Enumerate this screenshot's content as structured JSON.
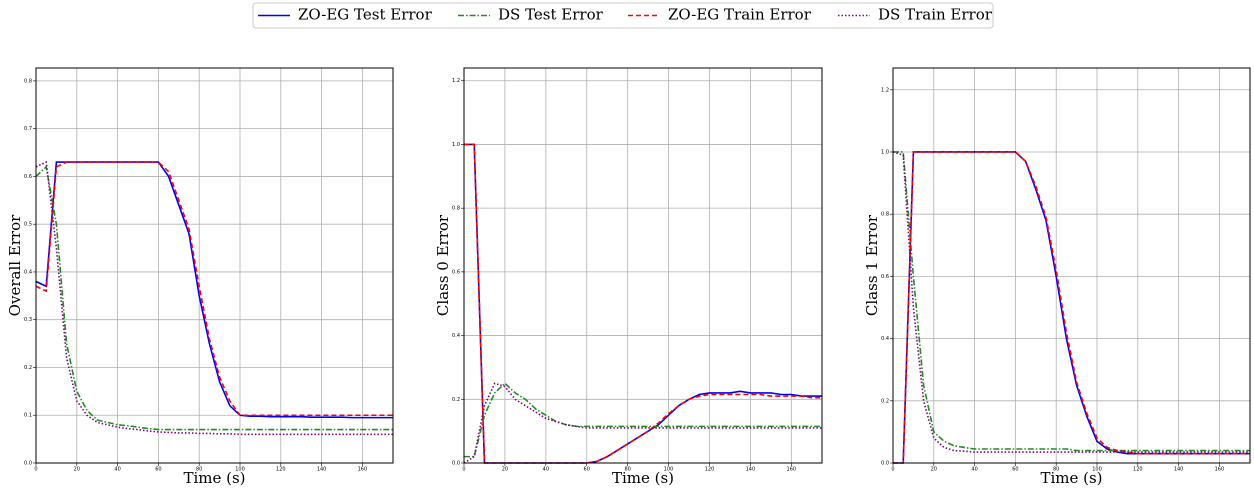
{
  "chart_data": [
    {
      "type": "line",
      "xlabel": "Time (s)",
      "ylabel": "Overall Error",
      "x": [
        0,
        5,
        10,
        15,
        20,
        25,
        30,
        35,
        40,
        45,
        50,
        55,
        60,
        65,
        70,
        75,
        80,
        85,
        90,
        95,
        100,
        105,
        110,
        115,
        120,
        125,
        130,
        135,
        140,
        145,
        150,
        155,
        160,
        165,
        170,
        175
      ],
      "xlim": [
        0,
        175
      ],
      "xticks": [
        0,
        20,
        40,
        60,
        80,
        100,
        120,
        140,
        160
      ],
      "ylim": [
        0,
        0.827
      ],
      "yticks": [
        {
          "value": 0,
          "label": "0.0"
        },
        0.1,
        0.2,
        0.3,
        0.4,
        0.5,
        0.6,
        0.7,
        0.8
      ],
      "grid": true,
      "series": [
        {
          "name": "ZO-EG Test Error",
          "color": "#0000ff",
          "linestyle": "solid",
          "values": [
            0.38,
            0.37,
            0.63,
            0.63,
            0.63,
            0.63,
            0.63,
            0.63,
            0.63,
            0.63,
            0.63,
            0.63,
            0.63,
            0.6,
            0.54,
            0.48,
            0.35,
            0.25,
            0.17,
            0.12,
            0.1,
            0.098,
            0.098,
            0.097,
            0.097,
            0.097,
            0.097,
            0.096,
            0.096,
            0.096,
            0.096,
            0.095,
            0.095,
            0.095,
            0.095,
            0.095
          ]
        },
        {
          "name": "DS Test Error",
          "color": "#228b22",
          "linestyle": "dashdot",
          "values": [
            0.6,
            0.62,
            0.5,
            0.25,
            0.15,
            0.11,
            0.09,
            0.085,
            0.08,
            0.078,
            0.075,
            0.072,
            0.07,
            0.07,
            0.07,
            0.07,
            0.07,
            0.07,
            0.07,
            0.07,
            0.07,
            0.07,
            0.07,
            0.07,
            0.07,
            0.07,
            0.07,
            0.07,
            0.07,
            0.07,
            0.07,
            0.07,
            0.07,
            0.07,
            0.07,
            0.07
          ]
        },
        {
          "name": "ZO-EG Train Error",
          "color": "#ff0000",
          "linestyle": "dashed",
          "values": [
            0.37,
            0.36,
            0.62,
            0.63,
            0.63,
            0.63,
            0.63,
            0.63,
            0.63,
            0.63,
            0.63,
            0.63,
            0.63,
            0.61,
            0.55,
            0.49,
            0.37,
            0.26,
            0.18,
            0.13,
            0.1,
            0.1,
            0.1,
            0.1,
            0.1,
            0.1,
            0.1,
            0.1,
            0.1,
            0.1,
            0.1,
            0.1,
            0.1,
            0.1,
            0.1,
            0.1
          ]
        },
        {
          "name": "DS Train Error",
          "color": "#800080",
          "linestyle": "dotted",
          "values": [
            0.62,
            0.63,
            0.45,
            0.22,
            0.13,
            0.1,
            0.085,
            0.08,
            0.075,
            0.072,
            0.07,
            0.067,
            0.065,
            0.064,
            0.063,
            0.063,
            0.062,
            0.062,
            0.061,
            0.061,
            0.06,
            0.06,
            0.06,
            0.06,
            0.06,
            0.06,
            0.06,
            0.06,
            0.06,
            0.06,
            0.06,
            0.06,
            0.06,
            0.06,
            0.06,
            0.06
          ]
        }
      ]
    },
    {
      "type": "line",
      "xlabel": "Time (s)",
      "ylabel": "Class 0 Error",
      "x": [
        0,
        5,
        10,
        15,
        20,
        25,
        30,
        35,
        40,
        45,
        50,
        55,
        60,
        65,
        70,
        75,
        80,
        85,
        90,
        95,
        100,
        105,
        110,
        115,
        120,
        125,
        130,
        135,
        140,
        145,
        150,
        155,
        160,
        165,
        170,
        175
      ],
      "xlim": [
        0,
        175
      ],
      "xticks": [
        0,
        20,
        40,
        60,
        80,
        100,
        120,
        140,
        160
      ],
      "ylim": [
        0,
        1.24
      ],
      "yticks": [
        {
          "value": 0,
          "label": "0.0"
        },
        0.2,
        0.4,
        0.6,
        0.8,
        {
          "value": 1,
          "label": "1.0"
        },
        1.2
      ],
      "grid": true,
      "series": [
        {
          "name": "ZO-EG Test Error",
          "color": "#0000ff",
          "linestyle": "solid",
          "values": [
            1,
            1,
            0,
            0,
            0,
            0,
            0,
            0,
            0,
            0,
            0,
            0,
            0,
            0.005,
            0.02,
            0.04,
            0.06,
            0.08,
            0.1,
            0.12,
            0.15,
            0.18,
            0.2,
            0.215,
            0.22,
            0.22,
            0.22,
            0.225,
            0.22,
            0.22,
            0.22,
            0.215,
            0.215,
            0.21,
            0.21,
            0.21
          ]
        },
        {
          "name": "DS Test Error",
          "color": "#228b22",
          "linestyle": "dashdot",
          "values": [
            0.02,
            0.02,
            0.15,
            0.22,
            0.25,
            0.22,
            0.2,
            0.17,
            0.15,
            0.13,
            0.12,
            0.115,
            0.115,
            0.115,
            0.115,
            0.115,
            0.115,
            0.115,
            0.115,
            0.115,
            0.115,
            0.115,
            0.115,
            0.115,
            0.115,
            0.115,
            0.115,
            0.115,
            0.115,
            0.115,
            0.115,
            0.115,
            0.115,
            0.115,
            0.115,
            0.115
          ]
        },
        {
          "name": "ZO-EG Train Error",
          "color": "#ff0000",
          "linestyle": "dashed",
          "values": [
            1,
            1,
            0,
            0,
            0,
            0,
            0,
            0,
            0,
            0,
            0,
            0,
            0,
            0.005,
            0.02,
            0.04,
            0.06,
            0.08,
            0.1,
            0.125,
            0.155,
            0.18,
            0.2,
            0.21,
            0.215,
            0.215,
            0.215,
            0.215,
            0.215,
            0.215,
            0.21,
            0.21,
            0.21,
            0.21,
            0.205,
            0.205
          ]
        },
        {
          "name": "DS Train Error",
          "color": "#800080",
          "linestyle": "dotted",
          "values": [
            0,
            0.02,
            0.18,
            0.25,
            0.24,
            0.2,
            0.18,
            0.16,
            0.14,
            0.13,
            0.12,
            0.115,
            0.11,
            0.11,
            0.11,
            0.11,
            0.11,
            0.11,
            0.11,
            0.11,
            0.11,
            0.11,
            0.11,
            0.11,
            0.11,
            0.11,
            0.11,
            0.11,
            0.11,
            0.11,
            0.11,
            0.11,
            0.11,
            0.11,
            0.11,
            0.11
          ]
        }
      ]
    },
    {
      "type": "line",
      "xlabel": "Time (s)",
      "ylabel": "Class 1 Error",
      "x": [
        0,
        5,
        10,
        15,
        20,
        25,
        30,
        35,
        40,
        45,
        50,
        55,
        60,
        65,
        70,
        75,
        80,
        85,
        90,
        95,
        100,
        105,
        110,
        115,
        120,
        125,
        130,
        135,
        140,
        145,
        150,
        155,
        160,
        165,
        170,
        175
      ],
      "xlim": [
        0,
        175
      ],
      "xticks": [
        0,
        20,
        40,
        60,
        80,
        100,
        120,
        140,
        160
      ],
      "ylim": [
        0,
        1.27
      ],
      "yticks": [
        {
          "value": 0,
          "label": "0.0"
        },
        0.2,
        0.4,
        0.6,
        0.8,
        {
          "value": 1,
          "label": "1.0"
        },
        1.2
      ],
      "grid": true,
      "series": [
        {
          "name": "ZO-EG Test Error",
          "color": "#0000ff",
          "linestyle": "solid",
          "values": [
            0,
            0,
            1,
            1,
            1,
            1,
            1,
            1,
            1,
            1,
            1,
            1,
            1,
            0.97,
            0.88,
            0.78,
            0.6,
            0.4,
            0.25,
            0.15,
            0.07,
            0.045,
            0.035,
            0.03,
            0.03,
            0.03,
            0.03,
            0.03,
            0.03,
            0.03,
            0.03,
            0.03,
            0.03,
            0.03,
            0.03,
            0.03
          ]
        },
        {
          "name": "DS Test Error",
          "color": "#228b22",
          "linestyle": "dashdot",
          "values": [
            1,
            1,
            0.6,
            0.25,
            0.1,
            0.07,
            0.055,
            0.05,
            0.045,
            0.045,
            0.045,
            0.045,
            0.045,
            0.045,
            0.045,
            0.045,
            0.045,
            0.045,
            0.04,
            0.04,
            0.04,
            0.04,
            0.04,
            0.04,
            0.04,
            0.04,
            0.04,
            0.04,
            0.04,
            0.04,
            0.04,
            0.04,
            0.04,
            0.04,
            0.04,
            0.04
          ]
        },
        {
          "name": "ZO-EG Train Error",
          "color": "#ff0000",
          "linestyle": "dashed",
          "values": [
            0,
            0,
            1,
            1,
            1,
            1,
            1,
            1,
            1,
            1,
            1,
            1,
            1,
            0.97,
            0.89,
            0.79,
            0.62,
            0.42,
            0.26,
            0.16,
            0.08,
            0.05,
            0.04,
            0.035,
            0.03,
            0.03,
            0.03,
            0.03,
            0.03,
            0.03,
            0.03,
            0.03,
            0.03,
            0.03,
            0.03,
            0.03
          ]
        },
        {
          "name": "DS Train Error",
          "color": "#800080",
          "linestyle": "dotted",
          "values": [
            1,
            0.99,
            0.5,
            0.2,
            0.08,
            0.05,
            0.04,
            0.038,
            0.035,
            0.035,
            0.035,
            0.035,
            0.035,
            0.035,
            0.035,
            0.035,
            0.035,
            0.035,
            0.035,
            0.035,
            0.035,
            0.035,
            0.035,
            0.035,
            0.035,
            0.035,
            0.035,
            0.035,
            0.035,
            0.035,
            0.035,
            0.035,
            0.035,
            0.035,
            0.035,
            0.035
          ]
        }
      ]
    }
  ]
}
